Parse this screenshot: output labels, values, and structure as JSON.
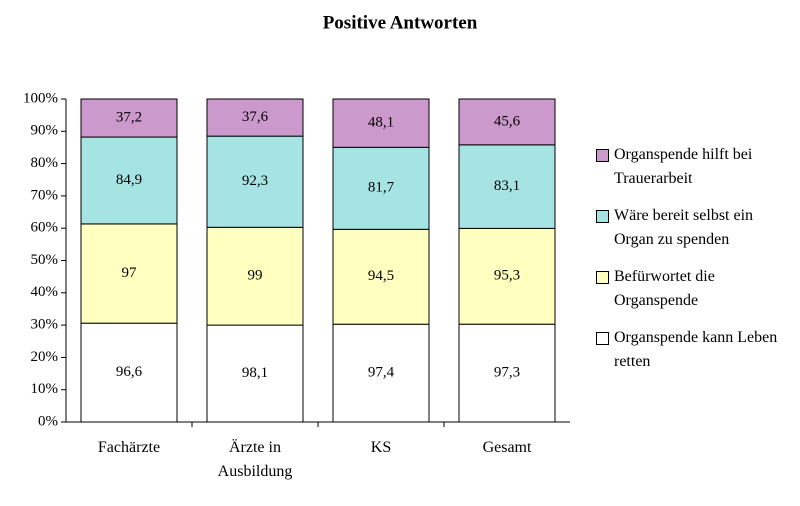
{
  "chart_data": {
    "type": "stacked_percent_bar",
    "title": "Positive Antworten",
    "categories": [
      "Fachärzte",
      "Ärzte in Ausbildung",
      "KS",
      "Gesamt"
    ],
    "series": [
      {
        "name": "Organspende kann Leben retten",
        "color": "#ffffff",
        "values": [
          96.6,
          98.1,
          97.4,
          97.3
        ],
        "value_labels": [
          "96,6",
          "98,1",
          "97,4",
          "97,3"
        ]
      },
      {
        "name": "Befürwortet die Organspende",
        "color": "#ffffc0",
        "values": [
          97,
          99,
          94.5,
          95.3
        ],
        "value_labels": [
          "97",
          "99",
          "94,5",
          "95,3"
        ]
      },
      {
        "name": "Wäre bereit selbst ein Organ zu spenden",
        "color": "#a6e3e3",
        "values": [
          84.9,
          92.3,
          81.7,
          83.1
        ],
        "value_labels": [
          "84,9",
          "92,3",
          "81,7",
          "83,1"
        ]
      },
      {
        "name": "Organspende hilft bei Trauerarbeit",
        "color": "#cc99cc",
        "values": [
          37.2,
          37.6,
          48.1,
          45.6
        ],
        "value_labels": [
          "37,2",
          "37,6",
          "48,1",
          "45,6"
        ]
      }
    ],
    "ylim": [
      0,
      100
    ],
    "yticks": [
      {
        "value": 0,
        "label": "0%"
      },
      {
        "value": 10,
        "label": "10%"
      },
      {
        "value": 20,
        "label": "20%"
      },
      {
        "value": 30,
        "label": "30%"
      },
      {
        "value": 40,
        "label": "40%"
      },
      {
        "value": 50,
        "label": "50%"
      },
      {
        "value": 60,
        "label": "60%"
      },
      {
        "value": 70,
        "label": "70%"
      },
      {
        "value": 80,
        "label": "80%"
      },
      {
        "value": 90,
        "label": "90%"
      },
      {
        "value": 100,
        "label": "100%"
      }
    ],
    "legend": "right"
  }
}
